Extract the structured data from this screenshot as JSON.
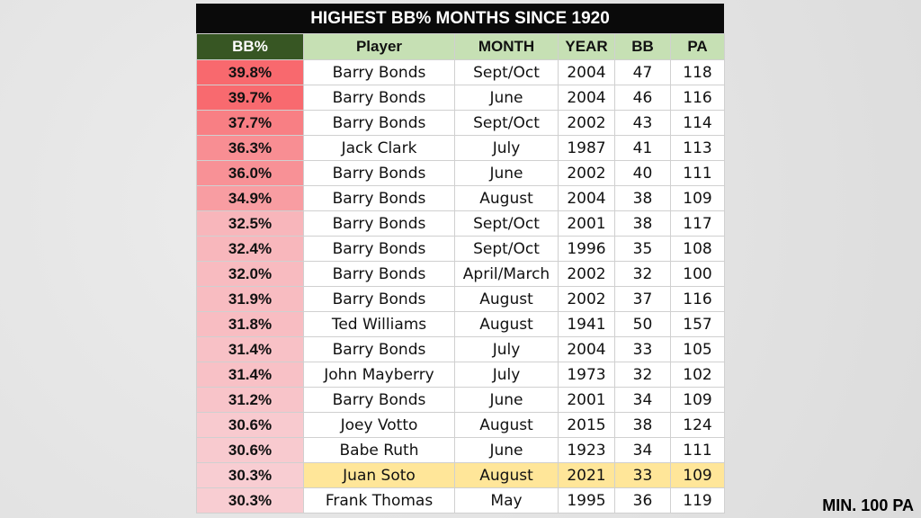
{
  "title": "HIGHEST BB% MONTHS SINCE 1920",
  "table": {
    "headers": [
      "BB%",
      "Player",
      "MONTH",
      "YEAR",
      "BB",
      "PA"
    ],
    "rows": [
      [
        "39.8%",
        "Barry Bonds",
        "Sept/Oct",
        "2004",
        "47",
        "118"
      ],
      [
        "39.7%",
        "Barry Bonds",
        "June",
        "2004",
        "46",
        "116"
      ],
      [
        "37.7%",
        "Barry Bonds",
        "Sept/Oct",
        "2002",
        "43",
        "114"
      ],
      [
        "36.3%",
        "Jack Clark",
        "July",
        "1987",
        "41",
        "113"
      ],
      [
        "36.0%",
        "Barry Bonds",
        "June",
        "2002",
        "40",
        "111"
      ],
      [
        "34.9%",
        "Barry Bonds",
        "August",
        "2004",
        "38",
        "109"
      ],
      [
        "32.5%",
        "Barry Bonds",
        "Sept/Oct",
        "2001",
        "38",
        "117"
      ],
      [
        "32.4%",
        "Barry Bonds",
        "Sept/Oct",
        "1996",
        "35",
        "108"
      ],
      [
        "32.0%",
        "Barry Bonds",
        "April/March",
        "2002",
        "32",
        "100"
      ],
      [
        "31.9%",
        "Barry Bonds",
        "August",
        "2002",
        "37",
        "116"
      ],
      [
        "31.8%",
        "Ted Williams",
        "August",
        "1941",
        "50",
        "157"
      ],
      [
        "31.4%",
        "Barry Bonds",
        "July",
        "2004",
        "33",
        "105"
      ],
      [
        "31.4%",
        "John Mayberry",
        "July",
        "1973",
        "32",
        "102"
      ],
      [
        "31.2%",
        "Barry Bonds",
        "June",
        "2001",
        "34",
        "109"
      ],
      [
        "30.6%",
        "Joey Votto",
        "August",
        "2015",
        "38",
        "124"
      ],
      [
        "30.6%",
        "Babe Ruth",
        "June",
        "1923",
        "34",
        "111"
      ],
      [
        "30.3%",
        "Juan Soto",
        "August",
        "2021",
        "33",
        "109"
      ],
      [
        "30.3%",
        "Frank Thomas",
        "May",
        "1995",
        "36",
        "119"
      ]
    ]
  },
  "footnote": "MIN. 100 PA"
}
